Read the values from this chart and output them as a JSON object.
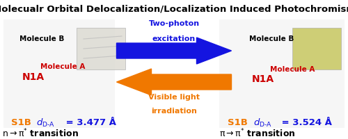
{
  "title": "Molecualr Orbital Delocalization/Localization Induced Photochromism",
  "title_fontsize": 9.5,
  "title_color": "#000000",
  "bg_color": "#ffffff",
  "arrow_right_color": "#1414e0",
  "arrow_left_color": "#f07800",
  "arrow_right_text1": "Two-photon",
  "arrow_right_text2": "excitation",
  "arrow_left_text1": "Visible light",
  "arrow_left_text2": "irradiation",
  "left_mol_b": "Molecule B",
  "left_mol_a": "Molecule A",
  "left_n1a": "N1A",
  "left_s1b": "S1B",
  "left_dda_num": " = 3.477 Å",
  "left_trans": "n→π* transition",
  "right_mol_b": "Molecule B",
  "right_mol_a": "Molecule A",
  "right_n1a": "N1A",
  "right_s1b": "S1B",
  "right_dda_num": " = 3.524 Å",
  "right_trans": "π→π* transition",
  "orange": "#f07800",
  "blue": "#1414e0",
  "red": "#cc0000",
  "black": "#000000",
  "mol_bg_left": "#d8d8d8",
  "mol_bg_right": "#d8d8d8",
  "inset_left_color": "#e0ddd5",
  "inset_right_color": "#d4cc50"
}
